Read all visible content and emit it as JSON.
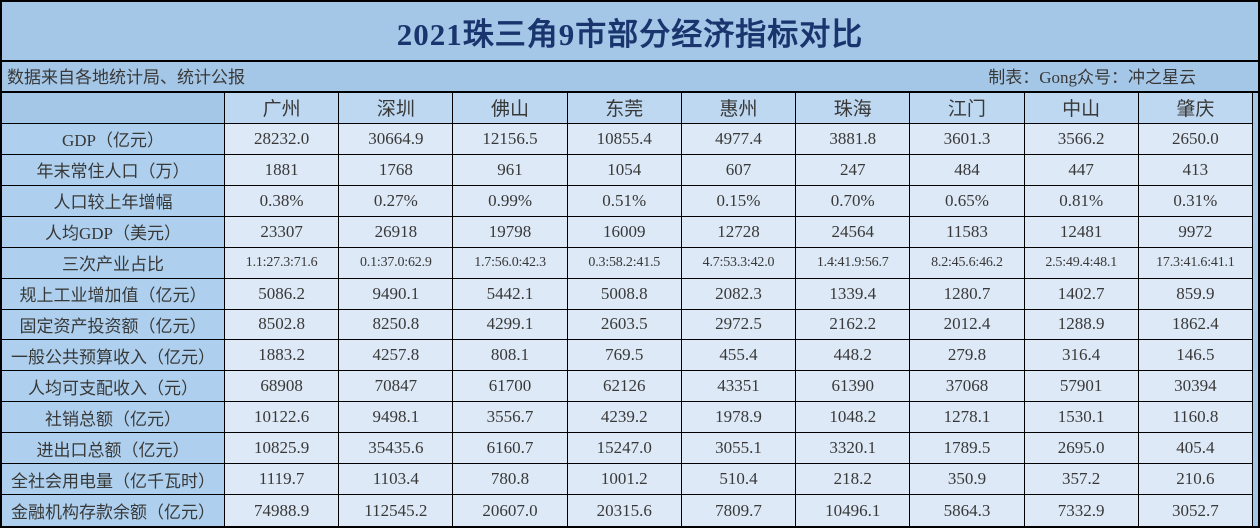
{
  "title": "2021珠三角9市部分经济指标对比",
  "notes": {
    "source": "数据来自各地统计局、统计公报",
    "credit": "制表：Gong众号：冲之星云"
  },
  "colors": {
    "band_bg": "#a5c7e7",
    "header_cell_bg": "#bed8f1",
    "label_cell_bg": "#aed0ee",
    "value_cell_bg": "#dde9f6",
    "title_text": "#1a346e",
    "body_text": "#383838",
    "border": "#000000"
  },
  "chart_data": {
    "type": "table",
    "title": "2021珠三角9市部分经济指标对比",
    "columns": [
      "广州",
      "深圳",
      "佛山",
      "东莞",
      "惠州",
      "珠海",
      "江门",
      "中山",
      "肇庆"
    ],
    "rows": [
      {
        "label": "GDP（亿元）",
        "values": [
          "28232.0",
          "30664.9",
          "12156.5",
          "10855.4",
          "4977.4",
          "3881.8",
          "3601.3",
          "3566.2",
          "2650.0"
        ]
      },
      {
        "label": "年末常住人口（万）",
        "values": [
          "1881",
          "1768",
          "961",
          "1054",
          "607",
          "247",
          "484",
          "447",
          "413"
        ]
      },
      {
        "label": "人口较上年增幅",
        "values": [
          "0.38%",
          "0.27%",
          "0.99%",
          "0.51%",
          "0.15%",
          "0.70%",
          "0.65%",
          "0.81%",
          "0.31%"
        ]
      },
      {
        "label": "人均GDP（美元）",
        "values": [
          "23307",
          "26918",
          "19798",
          "16009",
          "12728",
          "24564",
          "11583",
          "12481",
          "9972"
        ]
      },
      {
        "label": "三次产业占比",
        "values": [
          "1.1:27.3:71.6",
          "0.1:37.0:62.9",
          "1.7:56.0:42.3",
          "0.3:58.2:41.5",
          "4.7:53.3:42.0",
          "1.4:41.9:56.7",
          "8.2:45.6:46.2",
          "2.5:49.4:48.1",
          "17.3:41.6:41.1"
        ]
      },
      {
        "label": "规上工业增加值（亿元）",
        "values": [
          "5086.2",
          "9490.1",
          "5442.1",
          "5008.8",
          "2082.3",
          "1339.4",
          "1280.7",
          "1402.7",
          "859.9"
        ]
      },
      {
        "label": "固定资产投资额（亿元）",
        "values": [
          "8502.8",
          "8250.8",
          "4299.1",
          "2603.5",
          "2972.5",
          "2162.2",
          "2012.4",
          "1288.9",
          "1862.4"
        ]
      },
      {
        "label": "一般公共预算收入（亿元）",
        "values": [
          "1883.2",
          "4257.8",
          "808.1",
          "769.5",
          "455.4",
          "448.2",
          "279.8",
          "316.4",
          "146.5"
        ]
      },
      {
        "label": "人均可支配收入（元）",
        "values": [
          "68908",
          "70847",
          "61700",
          "62126",
          "43351",
          "61390",
          "37068",
          "57901",
          "30394"
        ]
      },
      {
        "label": "社销总额（亿元）",
        "values": [
          "10122.6",
          "9498.1",
          "3556.7",
          "4239.2",
          "1978.9",
          "1048.2",
          "1278.1",
          "1530.1",
          "1160.8"
        ]
      },
      {
        "label": "进出口总额（亿元）",
        "values": [
          "10825.9",
          "35435.6",
          "6160.7",
          "15247.0",
          "3055.1",
          "3320.1",
          "1789.5",
          "2695.0",
          "405.4"
        ]
      },
      {
        "label": "全社会用电量（亿千瓦时）",
        "values": [
          "1119.7",
          "1103.4",
          "780.8",
          "1001.2",
          "510.4",
          "218.2",
          "350.9",
          "357.2",
          "210.6"
        ]
      },
      {
        "label": "金融机构存款余额（亿元）",
        "values": [
          "74988.9",
          "112545.2",
          "20607.0",
          "20315.6",
          "7809.7",
          "10496.1",
          "5864.3",
          "7332.9",
          "3052.7"
        ]
      }
    ]
  }
}
